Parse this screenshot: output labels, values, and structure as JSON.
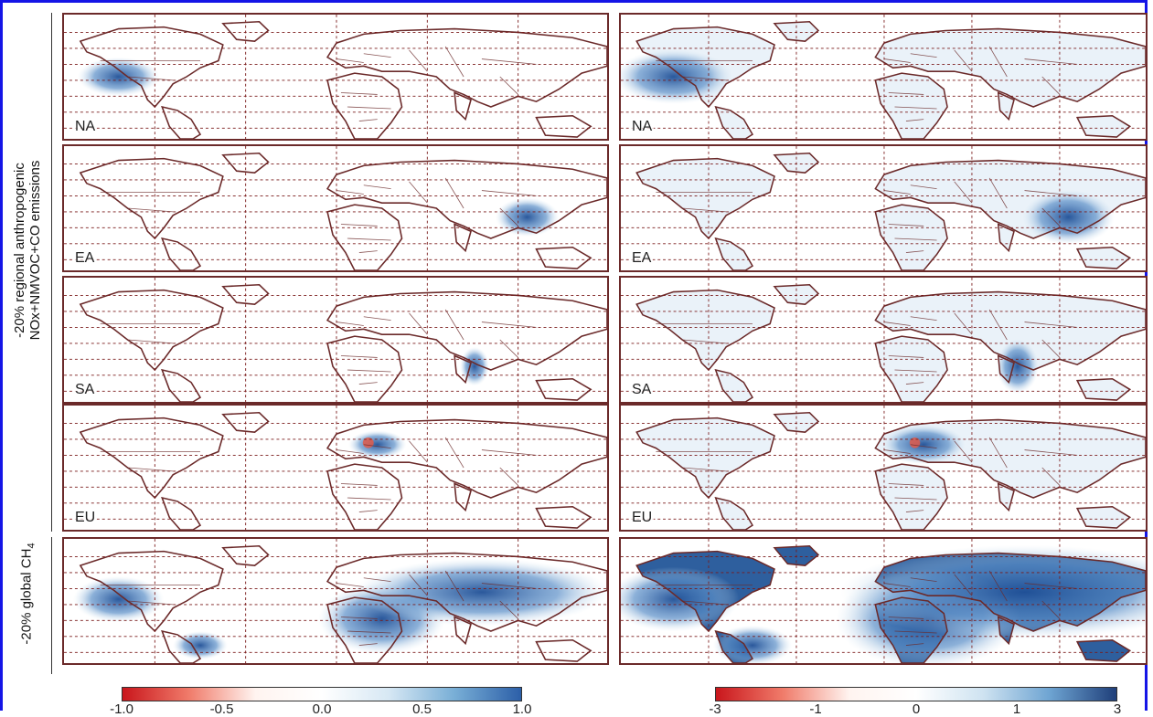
{
  "figure": {
    "row_group_label_line1": "-20% regional anthropogenic",
    "row_group_label_line2": "NOx+NMVOC+CO emissions",
    "row5_label": "-20% global CH",
    "row5_label_sub": "4"
  },
  "rows": [
    {
      "region": "NA",
      "focus": "na"
    },
    {
      "region": "EA",
      "focus": "ea"
    },
    {
      "region": "SA",
      "focus": "sa"
    },
    {
      "region": "EU",
      "focus": "eu"
    },
    {
      "region": "",
      "focus": "global"
    }
  ],
  "colorbars": {
    "left": {
      "ticks": [
        "-1.0",
        "-0.5",
        "0.0",
        "0.5",
        "1.0"
      ],
      "min_color": "#d7191c",
      "mid_color": "#ffffff",
      "max_color": "#2c5fa8"
    },
    "right": {
      "ticks": [
        "-3",
        "-1",
        "0",
        "1",
        "3"
      ],
      "min_color": "#d7191c",
      "mid_color": "#ffffff",
      "max_color": "#1f3f7a"
    }
  },
  "colors": {
    "frame": "#1414e6",
    "coast": "#6b2a2a",
    "grid": "#7a1a1a",
    "land": "#ffffff",
    "strong": "#1f4f96",
    "light": "#cfe3f1"
  }
}
